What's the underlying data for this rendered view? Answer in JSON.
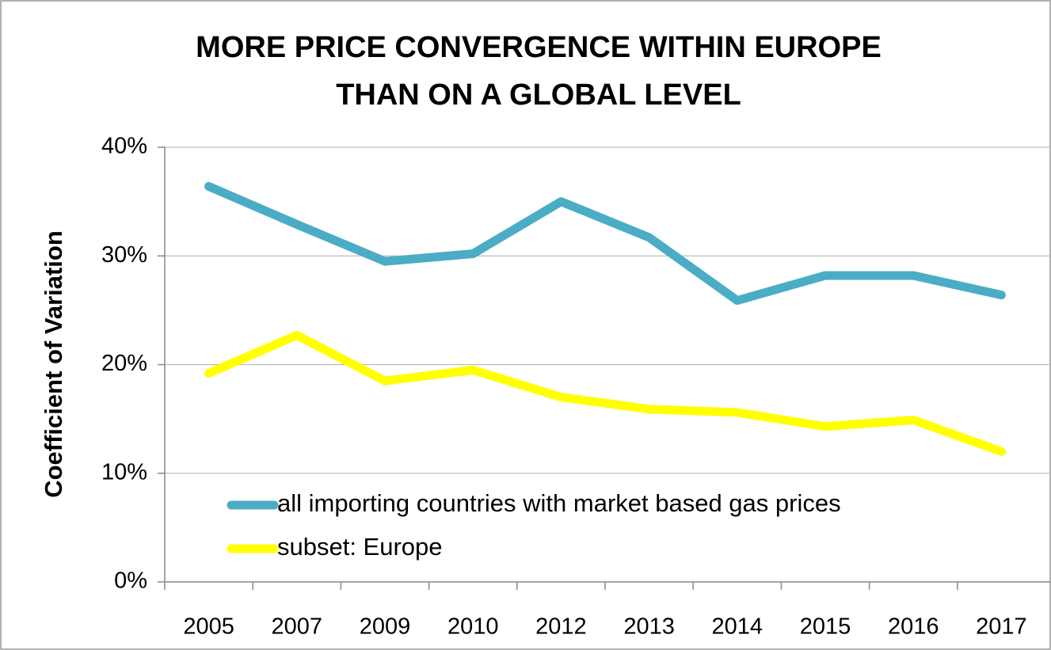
{
  "chart_data": {
    "type": "line",
    "title": [
      "MORE PRICE CONVERGENCE WITHIN EUROPE",
      "THAN ON A GLOBAL LEVEL"
    ],
    "ylabel": "Coefficient of Variation",
    "categories": [
      "2005",
      "2007",
      "2009",
      "2010",
      "2012",
      "2013",
      "2014",
      "2015",
      "2016",
      "2017"
    ],
    "series": [
      {
        "name": "all importing countries with market based gas prices",
        "color": "#4bacc6",
        "values": [
          36.4,
          32.9,
          29.5,
          30.2,
          35.0,
          31.7,
          25.9,
          28.2,
          28.2,
          26.4
        ]
      },
      {
        "name": "subset: Europe",
        "color": "#ffff00",
        "values": [
          19.2,
          22.7,
          18.5,
          19.5,
          17.0,
          15.9,
          15.6,
          14.3,
          14.9,
          12.0
        ]
      }
    ],
    "ylim": [
      0,
      40
    ],
    "yticks": [
      {
        "value": 0,
        "label": "0%"
      },
      {
        "value": 10,
        "label": "10%"
      },
      {
        "value": 20,
        "label": "20%"
      },
      {
        "value": 30,
        "label": "30%"
      },
      {
        "value": 40,
        "label": "40%"
      }
    ],
    "grid": true,
    "legend": "bottom-left"
  }
}
